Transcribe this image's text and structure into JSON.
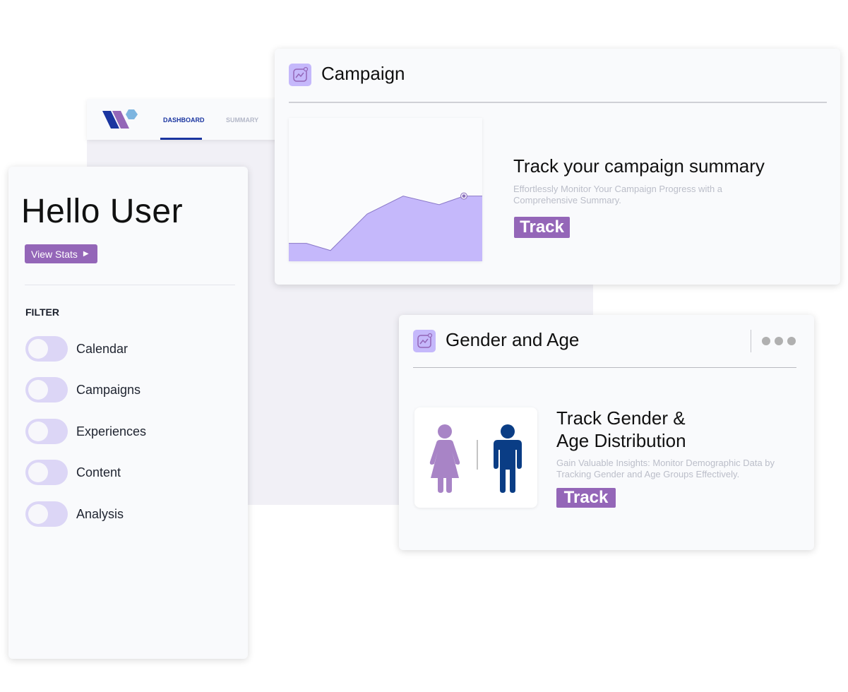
{
  "nav": {
    "tabs": [
      {
        "label": "DASHBOARD",
        "active": true
      },
      {
        "label": "SUMMARY",
        "active": false
      }
    ]
  },
  "sidebar": {
    "greeting": "Hello User",
    "view_stats_label": "View Stats",
    "filter_heading": "FILTER",
    "filters": [
      {
        "label": "Calendar",
        "on": false
      },
      {
        "label": "Campaigns",
        "on": false
      },
      {
        "label": "Experiences",
        "on": false
      },
      {
        "label": "Content",
        "on": false
      },
      {
        "label": "Analysis",
        "on": false
      }
    ]
  },
  "campaign": {
    "title": "Campaign",
    "heading": "Track your campaign summary",
    "description": "Effortlessly Monitor Your Campaign Progress with a Comprehensive Summary.",
    "button": "Track",
    "icon": "chart-line-icon"
  },
  "gender": {
    "title": "Gender and Age",
    "heading_line1": "Track Gender &",
    "heading_line2": "Age Distribution",
    "description": "Gain Valuable Insights: Monitor Demographic Data by Tracking Gender and Age Groups Effectively.",
    "button": "Track",
    "icon": "chart-line-icon"
  },
  "colors": {
    "accent": "#9466b8",
    "navy": "#1a35a0",
    "female": "#a884c6",
    "male": "#0a3d85",
    "area": "#c5b8fb"
  },
  "chart_data": {
    "type": "area",
    "values": [
      2.5,
      2.5,
      1.5,
      6.6,
      9.1,
      7.9,
      9.1,
      9.1
    ],
    "highlight_index": 6,
    "ylim": [
      0,
      20
    ]
  }
}
